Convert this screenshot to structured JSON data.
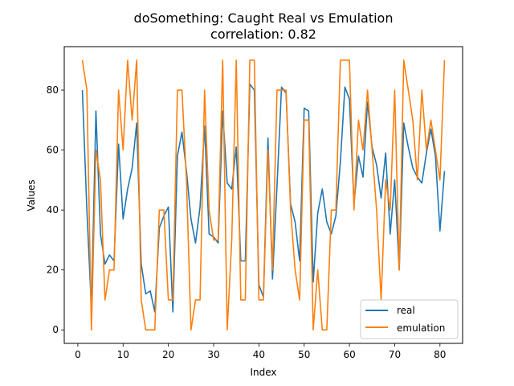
{
  "chart_data": {
    "type": "line",
    "title": "doSomething: Caught Real vs Emulation",
    "subtitle": "correlation: 0.82",
    "xlabel": "Index",
    "ylabel": "Values",
    "xlim": [
      -3,
      85
    ],
    "ylim": [
      -4.5,
      94.5
    ],
    "xticks": [
      0,
      10,
      20,
      30,
      40,
      50,
      60,
      70,
      80
    ],
    "yticks": [
      0,
      20,
      40,
      60,
      80
    ],
    "grid": false,
    "legend_position": "lower-right",
    "x": [
      1,
      2,
      3,
      4,
      5,
      6,
      7,
      8,
      9,
      10,
      11,
      12,
      13,
      14,
      15,
      16,
      17,
      18,
      19,
      20,
      21,
      22,
      23,
      24,
      25,
      26,
      27,
      28,
      29,
      30,
      31,
      32,
      33,
      34,
      35,
      36,
      37,
      38,
      39,
      40,
      41,
      42,
      43,
      44,
      45,
      46,
      47,
      48,
      49,
      50,
      51,
      52,
      53,
      54,
      55,
      56,
      57,
      58,
      59,
      60,
      61,
      62,
      63,
      64,
      65,
      66,
      67,
      68,
      69,
      70,
      71,
      72,
      73,
      74,
      75,
      76,
      77,
      78,
      79,
      80,
      81
    ],
    "series": [
      {
        "name": "real",
        "color": "#1f77b4",
        "values": [
          80,
          40,
          7,
          73,
          32,
          22,
          25,
          23,
          62,
          37,
          47,
          54,
          69,
          22,
          12,
          13,
          6,
          34,
          38,
          41,
          6,
          58,
          66,
          53,
          37,
          29,
          41,
          68,
          32,
          31,
          29,
          73,
          49,
          47,
          61,
          23,
          23,
          82,
          80,
          15,
          11,
          64,
          17,
          48,
          81,
          79,
          42,
          36,
          23,
          74,
          73,
          16,
          39,
          47,
          36,
          32,
          38,
          56,
          81,
          77,
          42,
          58,
          51,
          76,
          61,
          55,
          44,
          59,
          32,
          50,
          20,
          69,
          61,
          54,
          51,
          49,
          59,
          67,
          58,
          33,
          53
        ]
      },
      {
        "name": "emulation",
        "color": "#ff7f0e",
        "values": [
          90,
          80,
          0,
          60,
          50,
          10,
          20,
          20,
          80,
          60,
          90,
          70,
          90,
          10,
          0,
          0,
          0,
          40,
          40,
          10,
          10,
          80,
          80,
          50,
          0,
          10,
          10,
          80,
          40,
          30,
          30,
          90,
          0,
          30,
          90,
          10,
          10,
          90,
          90,
          10,
          10,
          60,
          20,
          80,
          80,
          80,
          40,
          20,
          10,
          70,
          70,
          0,
          20,
          0,
          0,
          40,
          40,
          90,
          90,
          90,
          40,
          70,
          60,
          80,
          60,
          40,
          10,
          50,
          40,
          80,
          20,
          90,
          80,
          70,
          50,
          80,
          60,
          70,
          60,
          50,
          90
        ]
      }
    ]
  }
}
